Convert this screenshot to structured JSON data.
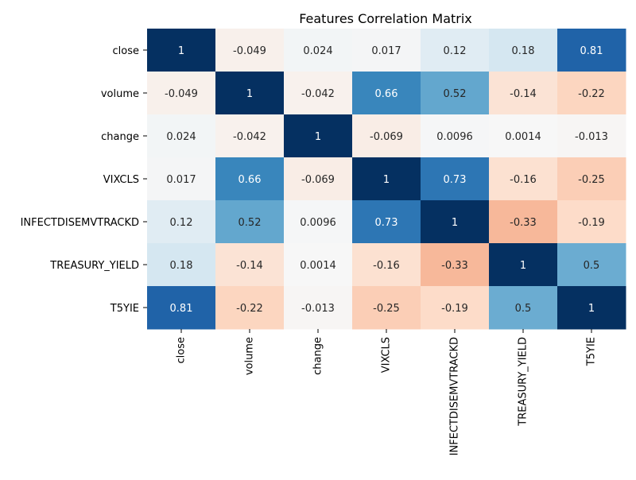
{
  "chart_data": {
    "type": "heatmap",
    "title": "Features Correlation Matrix",
    "xlabel": "",
    "ylabel": "",
    "x_categories": [
      "close",
      "volume",
      "change",
      "VIXCLS",
      "INFECTDISEMVTRACKD",
      "TREASURY_YIELD",
      "T5YIE"
    ],
    "y_categories": [
      "close",
      "volume",
      "change",
      "VIXCLS",
      "INFECTDISEMVTRACKD",
      "TREASURY_YIELD",
      "T5YIE"
    ],
    "values": [
      [
        1,
        -0.049,
        0.024,
        0.017,
        0.12,
        0.18,
        0.81
      ],
      [
        -0.049,
        1,
        -0.042,
        0.66,
        0.52,
        -0.14,
        -0.22
      ],
      [
        0.024,
        -0.042,
        1,
        -0.069,
        0.0096,
        0.0014,
        -0.013
      ],
      [
        0.017,
        0.66,
        -0.069,
        1,
        0.73,
        -0.16,
        -0.25
      ],
      [
        0.12,
        0.52,
        0.0096,
        0.73,
        1,
        -0.33,
        -0.19
      ],
      [
        0.18,
        -0.14,
        0.0014,
        -0.16,
        -0.33,
        1,
        0.5
      ],
      [
        0.81,
        -0.22,
        -0.013,
        -0.25,
        -0.19,
        0.5,
        1
      ]
    ],
    "value_labels": [
      [
        "1",
        "-0.049",
        "0.024",
        "0.017",
        "0.12",
        "0.18",
        "0.81"
      ],
      [
        "-0.049",
        "1",
        "-0.042",
        "0.66",
        "0.52",
        "-0.14",
        "-0.22"
      ],
      [
        "0.024",
        "-0.042",
        "1",
        "-0.069",
        "0.0096",
        "0.0014",
        "-0.013"
      ],
      [
        "0.017",
        "0.66",
        "-0.069",
        "1",
        "0.73",
        "-0.16",
        "-0.25"
      ],
      [
        "0.12",
        "0.52",
        "0.0096",
        "0.73",
        "1",
        "-0.33",
        "-0.19"
      ],
      [
        "0.18",
        "-0.14",
        "0.0014",
        "-0.16",
        "-0.33",
        "1",
        "0.5"
      ],
      [
        "0.81",
        "-0.22",
        "-0.013",
        "-0.25",
        "-0.19",
        "0.5",
        "1"
      ]
    ],
    "colormap": "RdBu",
    "vmin": -1,
    "vmax": 1,
    "colorbar": false,
    "grid": false,
    "legend": "none"
  }
}
